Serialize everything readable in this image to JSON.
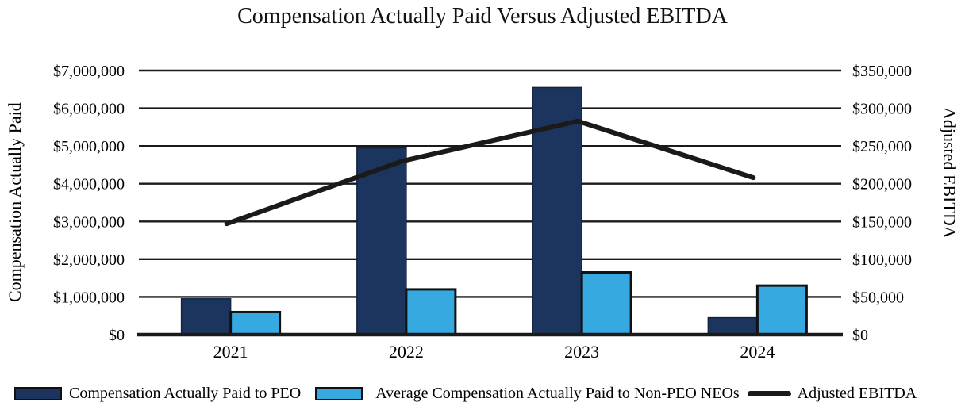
{
  "chart_data": {
    "type": "bar-line-combo",
    "title": "Compensation Actually Paid Versus Adjusted EBITDA",
    "categories": [
      "2021",
      "2022",
      "2023",
      "2024"
    ],
    "series": [
      {
        "name": "Compensation Actually Paid to PEO",
        "render": "bar",
        "axis": "left",
        "color": "#1C355E",
        "border_color": "#10223F",
        "values": [
          950000,
          4950000,
          6550000,
          450000
        ]
      },
      {
        "name": "Average Compensation Actually Paid to Non-PEO NEOs",
        "render": "bar",
        "axis": "left",
        "color": "#36A9E0",
        "border_color": "#111111",
        "values": [
          600000,
          1200000,
          1650000,
          1300000
        ]
      },
      {
        "name": "Adjusted EBITDA",
        "render": "line",
        "axis": "right",
        "color": "#1A1A1A",
        "values": [
          147000,
          230000,
          283000,
          208000
        ]
      }
    ],
    "left_axis": {
      "title": "Compensation Actually Paid",
      "range": [
        0,
        7000000
      ],
      "tick_interval": 1000000,
      "tick_labels": [
        "$0",
        "$1,000,000",
        "$2,000,000",
        "$3,000,000",
        "$4,000,000",
        "$5,000,000",
        "$6,000,000",
        "$7,000,000"
      ]
    },
    "right_axis": {
      "title": "Adjusted EBITDA",
      "range": [
        0,
        350000
      ],
      "tick_interval": 50000,
      "tick_labels": [
        "$0",
        "$50,000",
        "$100,000",
        "$150,000",
        "$200,000",
        "$250,000",
        "$300,000",
        "$350,000"
      ]
    },
    "grid": {
      "horizontal": true,
      "color": "#1A1A1A"
    },
    "legend": {
      "position": "bottom"
    }
  }
}
